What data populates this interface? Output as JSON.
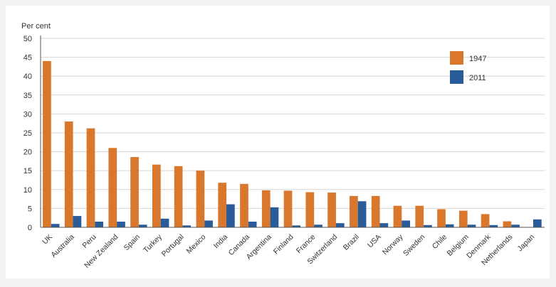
{
  "chart_data": {
    "type": "bar",
    "unit_label": "Per cent",
    "categories": [
      "UK",
      "Australia",
      "Peru",
      "New Zealand",
      "Spain",
      "Turkey",
      "Portugal",
      "Mexico",
      "India",
      "Canada",
      "Argentina",
      "Finland",
      "France",
      "Switzerland",
      "Brazil",
      "USA",
      "Norway",
      "Sweden",
      "Chile",
      "Belgium",
      "Denmark",
      "Netherlands",
      "Japan"
    ],
    "series": [
      {
        "name": "1947",
        "color": "#d9782c",
        "values": [
          44.0,
          28.0,
          26.2,
          21.0,
          18.6,
          16.6,
          16.2,
          15.0,
          11.8,
          11.5,
          9.8,
          9.7,
          9.3,
          9.2,
          8.3,
          8.3,
          5.7,
          5.7,
          4.8,
          4.4,
          3.5,
          1.6,
          0.1
        ]
      },
      {
        "name": "2011",
        "color": "#2b5c9a",
        "values": [
          0.9,
          3.0,
          1.5,
          1.5,
          0.7,
          2.3,
          0.5,
          1.8,
          6.1,
          1.5,
          5.3,
          0.5,
          0.7,
          1.1,
          6.9,
          1.1,
          1.8,
          0.6,
          0.8,
          0.7,
          0.6,
          0.7,
          2.1
        ]
      }
    ],
    "ylim": [
      0,
      50
    ],
    "yticks": [
      "0",
      "5",
      "10",
      "15",
      "20",
      "25",
      "30",
      "35",
      "40",
      "45",
      "50"
    ],
    "grid": true,
    "legend_position": "top-right"
  }
}
